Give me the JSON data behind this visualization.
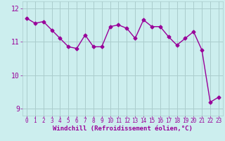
{
  "x": [
    0,
    1,
    2,
    3,
    4,
    5,
    6,
    7,
    8,
    9,
    10,
    11,
    12,
    13,
    14,
    15,
    16,
    17,
    18,
    19,
    20,
    21,
    22,
    23
  ],
  "y": [
    11.7,
    11.55,
    11.6,
    11.35,
    11.1,
    10.85,
    10.8,
    11.2,
    10.85,
    10.85,
    11.45,
    11.5,
    11.4,
    11.1,
    11.65,
    11.45,
    11.45,
    11.15,
    10.9,
    11.1,
    11.3,
    10.75,
    9.2,
    9.35
  ],
  "line_color": "#990099",
  "marker": "D",
  "marker_size": 2.5,
  "bg_color": "#cceeee",
  "grid_color": "#aacccc",
  "xlabel": "Windchill (Refroidissement éolien,°C)",
  "ylabel": "",
  "xlim": [
    -0.5,
    23.5
  ],
  "ylim": [
    8.8,
    12.2
  ],
  "yticks": [
    9,
    10,
    11,
    12
  ],
  "xtick_labels": [
    "0",
    "1",
    "2",
    "3",
    "4",
    "5",
    "6",
    "7",
    "8",
    "9",
    "10",
    "11",
    "12",
    "13",
    "14",
    "15",
    "16",
    "17",
    "18",
    "19",
    "20",
    "21",
    "22",
    "23"
  ],
  "xlabel_fontsize": 6.5,
  "tick_fontsize": 5.5,
  "ytick_fontsize": 7,
  "line_width": 1.0
}
